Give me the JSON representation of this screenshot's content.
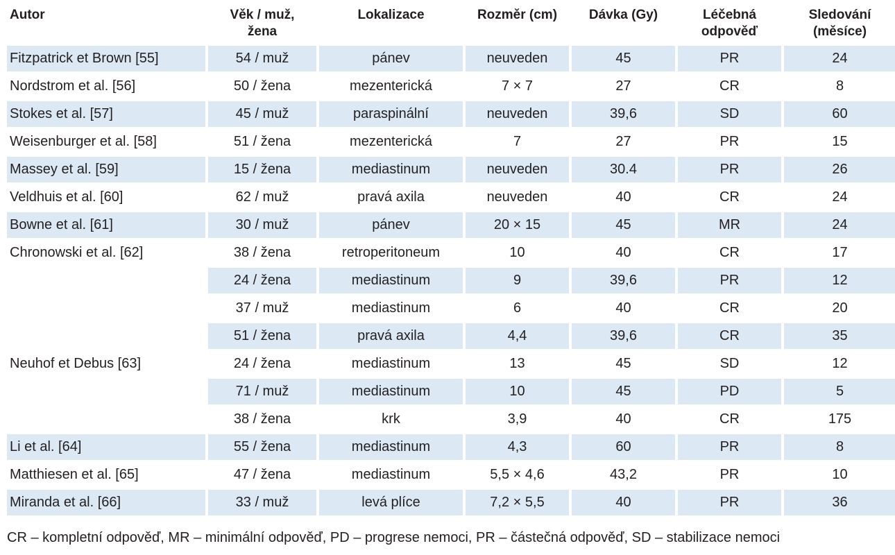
{
  "headers": [
    [
      "Autor"
    ],
    [
      "Věk / muž,",
      "žena"
    ],
    [
      "Lokalizace"
    ],
    [
      "Rozměr (cm)"
    ],
    [
      "Dávka (Gy)"
    ],
    [
      "Léčebná",
      "odpověď"
    ],
    [
      "Sledování",
      "(měsíce)"
    ]
  ],
  "rows": [
    [
      "Fitzpatrick et Brown [55]",
      "54 / muž",
      "pánev",
      "neuveden",
      "45",
      "PR",
      "24"
    ],
    [
      "Nordstrom et al. [56]",
      "50 / žena",
      "mezenterická",
      "7 × 7",
      "27",
      "CR",
      "8"
    ],
    [
      "Stokes et al. [57]",
      "45 / muž",
      "paraspinální",
      "neuveden",
      "39,6",
      "SD",
      "60"
    ],
    [
      "Weisenburger et al. [58]",
      "51 / žena",
      "mezenterická",
      "7",
      "27",
      "PR",
      "15"
    ],
    [
      "Massey et al. [59]",
      "15 / žena",
      "mediastinum",
      "neuveden",
      "30.4",
      "PR",
      "26"
    ],
    [
      "Veldhuis et al. [60]",
      "62 / muž",
      "pravá axila",
      "neuveden",
      "40",
      "CR",
      "24"
    ],
    [
      "Bowne et al. [61]",
      "30 / muž",
      "pánev",
      "20 × 15",
      "45",
      "MR",
      "24"
    ],
    [
      "Chronowski et al. [62]",
      "38 / žena",
      "retroperitoneum",
      "10",
      "40",
      "CR",
      "17"
    ],
    [
      "",
      "24 / žena",
      "mediastinum",
      "9",
      "39,6",
      "PR",
      "12"
    ],
    [
      "",
      "37 / muž",
      "mediastinum",
      "6",
      "40",
      "CR",
      "20"
    ],
    [
      "",
      "51 / žena",
      "pravá axila",
      "4,4",
      "39,6",
      "CR",
      "35"
    ],
    [
      "Neuhof et Debus [63]",
      "24 / žena",
      "mediastinum",
      "13",
      "45",
      "SD",
      "12"
    ],
    [
      "",
      "71 / muž",
      "mediastinum",
      "10",
      "45",
      "PD",
      "5"
    ],
    [
      "",
      "38 / žena",
      "krk",
      "3,9",
      "40",
      "CR",
      "175"
    ],
    [
      "Li et al. [64]",
      "55 / žena",
      "mediastinum",
      "4,3",
      "60",
      "PR",
      "8"
    ],
    [
      "Matthiesen et al. [65]",
      "47 / žena",
      "mediastinum",
      "5,5 × 4,6",
      "43,2",
      "PR",
      "10"
    ],
    [
      "Miranda et al. [66]",
      "33 / muž",
      "levá plíce",
      "7,2 × 5,5",
      "40",
      "PR",
      "36"
    ]
  ],
  "footnote": "CR – kompletní odpověď, MR – minimální odpověď, PD – progrese nemoci, PR – částečná odpověď, SD – stabilizace nemoci",
  "colors": {
    "row_shade": "#dce9f5",
    "text": "#231f20"
  }
}
